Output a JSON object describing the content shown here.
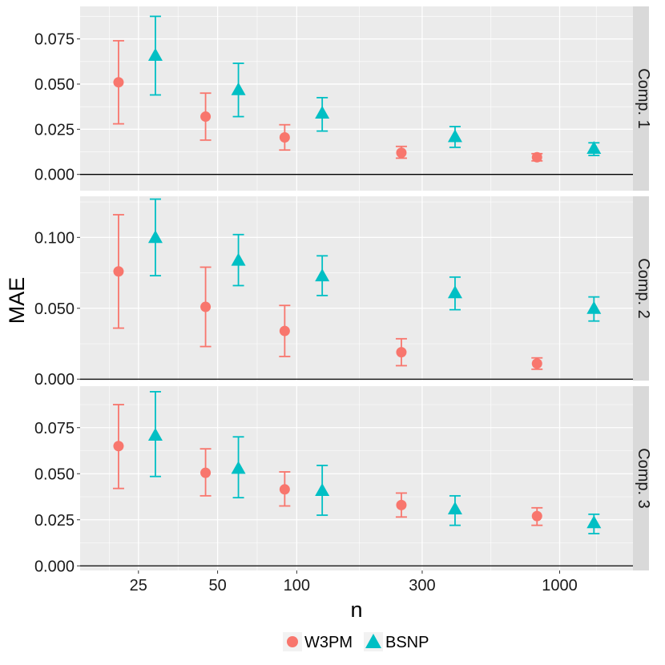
{
  "chart_data": {
    "type": "scatter",
    "subtype": "point-with-errorbars, faceted",
    "xlabel": "n",
    "ylabel": "MAE",
    "x_scale": "log10",
    "x_ticks": [
      25,
      50,
      100,
      300,
      1000
    ],
    "x_tick_labels": [
      "25",
      "50",
      "100",
      "300",
      "1000"
    ],
    "xlim": [
      15,
      1900
    ],
    "colors": {
      "W3PM": "#F8766D",
      "BSNP": "#00BFC4"
    },
    "legend": {
      "position": "bottom",
      "entries": [
        {
          "name": "W3PM",
          "shape": "circle",
          "color": "#F8766D"
        },
        {
          "name": "BSNP",
          "shape": "triangle",
          "color": "#00BFC4"
        }
      ]
    },
    "panels": [
      {
        "label": "Comp. 1",
        "ylim": [
          -0.009,
          0.093
        ],
        "y_ticks": [
          0,
          0.025,
          0.05,
          0.075
        ],
        "y_tick_labels": [
          "0.000",
          "0.025",
          "0.050",
          "0.075"
        ],
        "series": [
          {
            "name": "W3PM",
            "points": [
              {
                "x": 21,
                "y": 0.051,
                "lo": 0.028,
                "hi": 0.074
              },
              {
                "x": 45,
                "y": 0.032,
                "lo": 0.019,
                "hi": 0.045
              },
              {
                "x": 90,
                "y": 0.0205,
                "lo": 0.0135,
                "hi": 0.0275
              },
              {
                "x": 250,
                "y": 0.012,
                "lo": 0.009,
                "hi": 0.0155
              },
              {
                "x": 820,
                "y": 0.0095,
                "lo": 0.0075,
                "hi": 0.0115
              }
            ]
          },
          {
            "name": "BSNP",
            "points": [
              {
                "x": 29,
                "y": 0.066,
                "lo": 0.044,
                "hi": 0.0875
              },
              {
                "x": 60,
                "y": 0.047,
                "lo": 0.032,
                "hi": 0.0615
              },
              {
                "x": 125,
                "y": 0.034,
                "lo": 0.024,
                "hi": 0.0425
              },
              {
                "x": 400,
                "y": 0.021,
                "lo": 0.015,
                "hi": 0.0265
              },
              {
                "x": 1350,
                "y": 0.0145,
                "lo": 0.0105,
                "hi": 0.0175
              }
            ]
          }
        ]
      },
      {
        "label": "Comp. 2",
        "ylim": [
          -0.001,
          0.129
        ],
        "y_ticks": [
          0,
          0.05,
          0.1
        ],
        "y_tick_labels": [
          "0.000",
          "0.050",
          "0.100"
        ],
        "series": [
          {
            "name": "W3PM",
            "points": [
              {
                "x": 21,
                "y": 0.076,
                "lo": 0.036,
                "hi": 0.116
              },
              {
                "x": 45,
                "y": 0.051,
                "lo": 0.023,
                "hi": 0.079
              },
              {
                "x": 90,
                "y": 0.034,
                "lo": 0.016,
                "hi": 0.052
              },
              {
                "x": 250,
                "y": 0.019,
                "lo": 0.0095,
                "hi": 0.0285
              },
              {
                "x": 820,
                "y": 0.011,
                "lo": 0.007,
                "hi": 0.015
              }
            ]
          },
          {
            "name": "BSNP",
            "points": [
              {
                "x": 29,
                "y": 0.1,
                "lo": 0.073,
                "hi": 0.127
              },
              {
                "x": 60,
                "y": 0.084,
                "lo": 0.066,
                "hi": 0.102
              },
              {
                "x": 125,
                "y": 0.073,
                "lo": 0.059,
                "hi": 0.087
              },
              {
                "x": 400,
                "y": 0.061,
                "lo": 0.049,
                "hi": 0.072
              },
              {
                "x": 1350,
                "y": 0.05,
                "lo": 0.041,
                "hi": 0.058
              }
            ]
          }
        ]
      },
      {
        "label": "Comp. 3",
        "ylim": [
          -0.0025,
          0.0975
        ],
        "y_ticks": [
          0,
          0.025,
          0.05,
          0.075
        ],
        "y_tick_labels": [
          "0.000",
          "0.025",
          "0.050",
          "0.075"
        ],
        "series": [
          {
            "name": "W3PM",
            "points": [
              {
                "x": 21,
                "y": 0.065,
                "lo": 0.042,
                "hi": 0.0875
              },
              {
                "x": 45,
                "y": 0.0505,
                "lo": 0.038,
                "hi": 0.0635
              },
              {
                "x": 90,
                "y": 0.0415,
                "lo": 0.0325,
                "hi": 0.051
              },
              {
                "x": 250,
                "y": 0.033,
                "lo": 0.0265,
                "hi": 0.0395
              },
              {
                "x": 820,
                "y": 0.027,
                "lo": 0.022,
                "hi": 0.0315
              }
            ]
          },
          {
            "name": "BSNP",
            "points": [
              {
                "x": 29,
                "y": 0.071,
                "lo": 0.0485,
                "hi": 0.0945
              },
              {
                "x": 60,
                "y": 0.053,
                "lo": 0.037,
                "hi": 0.07
              },
              {
                "x": 125,
                "y": 0.041,
                "lo": 0.0275,
                "hi": 0.0545
              },
              {
                "x": 400,
                "y": 0.031,
                "lo": 0.022,
                "hi": 0.038
              },
              {
                "x": 1350,
                "y": 0.0235,
                "lo": 0.0175,
                "hi": 0.028
              }
            ]
          }
        ]
      }
    ]
  }
}
